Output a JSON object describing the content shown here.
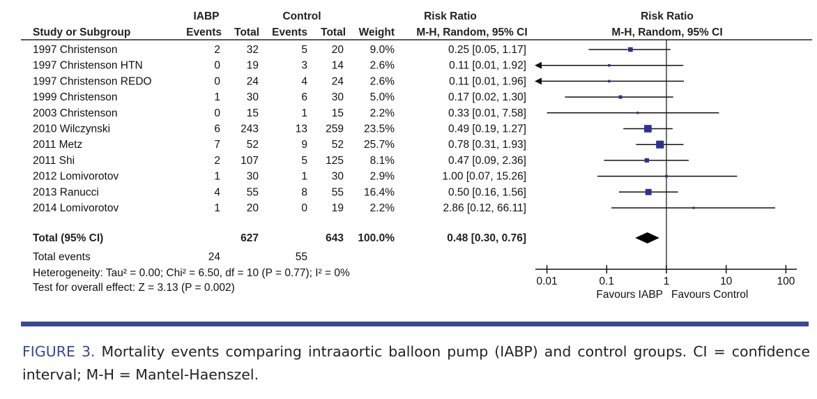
{
  "headers": {
    "group1": "IABP",
    "group2": "Control",
    "effect_top": "Risk Ratio",
    "study": "Study or Subgroup",
    "events": "Events",
    "total": "Total",
    "weight": "Weight",
    "effect_sub": "M-H, Random, 95% CI",
    "plot_top": "Risk Ratio",
    "plot_sub": "M-H, Random, 95% CI"
  },
  "chart_data": {
    "type": "forest",
    "x_scale": "log",
    "xlim": [
      0.01,
      100
    ],
    "x_ticks": [
      "0.01",
      "0.1",
      "1",
      "10",
      "100"
    ],
    "null_line": 1,
    "favours_left": "Favours IABP",
    "favours_right": "Favours Control",
    "marker_color": "#2e3192",
    "studies": [
      {
        "name": "1997 Christenson",
        "e1": "2",
        "n1": "32",
        "e2": "5",
        "n2": "20",
        "weight": "9.0%",
        "ci_text": "0.25 [0.05, 1.17]",
        "rr": 0.25,
        "lo": 0.05,
        "hi": 1.17,
        "w": 9.0
      },
      {
        "name": "1997 Christenson HTN",
        "e1": "0",
        "n1": "19",
        "e2": "3",
        "n2": "14",
        "weight": "2.6%",
        "ci_text": "0.11 [0.01, 1.92]",
        "rr": 0.11,
        "lo": 0.01,
        "hi": 1.92,
        "w": 2.6,
        "arrow_left": true
      },
      {
        "name": "1997 Christenson REDO",
        "e1": "0",
        "n1": "24",
        "e2": "4",
        "n2": "24",
        "weight": "2.6%",
        "ci_text": "0.11 [0.01, 1.96]",
        "rr": 0.11,
        "lo": 0.01,
        "hi": 1.96,
        "w": 2.6,
        "arrow_left": true
      },
      {
        "name": "1999 Christenson",
        "e1": "1",
        "n1": "30",
        "e2": "6",
        "n2": "30",
        "weight": "5.0%",
        "ci_text": "0.17 [0.02, 1.30]",
        "rr": 0.17,
        "lo": 0.02,
        "hi": 1.3,
        "w": 5.0
      },
      {
        "name": "2003 Christenson",
        "e1": "0",
        "n1": "15",
        "e2": "1",
        "n2": "15",
        "weight": "2.2%",
        "ci_text": "0.33 [0.01, 7.58]",
        "rr": 0.33,
        "lo": 0.01,
        "hi": 7.58,
        "w": 2.2
      },
      {
        "name": "2010 Wilczynski",
        "e1": "6",
        "n1": "243",
        "e2": "13",
        "n2": "259",
        "weight": "23.5%",
        "ci_text": "0.49 [0.19, 1.27]",
        "rr": 0.49,
        "lo": 0.19,
        "hi": 1.27,
        "w": 23.5
      },
      {
        "name": "2011 Metz",
        "e1": "7",
        "n1": "52",
        "e2": "9",
        "n2": "52",
        "weight": "25.7%",
        "ci_text": "0.78 [0.31, 1.93]",
        "rr": 0.78,
        "lo": 0.31,
        "hi": 1.93,
        "w": 25.7
      },
      {
        "name": "2011 Shi",
        "e1": "2",
        "n1": "107",
        "e2": "5",
        "n2": "125",
        "weight": "8.1%",
        "ci_text": "0.47 [0.09, 2.36]",
        "rr": 0.47,
        "lo": 0.09,
        "hi": 2.36,
        "w": 8.1
      },
      {
        "name": "2012 Lomivorotov",
        "e1": "1",
        "n1": "30",
        "e2": "1",
        "n2": "30",
        "weight": "2.9%",
        "ci_text": "1.00 [0.07, 15.26]",
        "rr": 1.0,
        "lo": 0.07,
        "hi": 15.26,
        "w": 2.9
      },
      {
        "name": "2013 Ranucci",
        "e1": "4",
        "n1": "55",
        "e2": "8",
        "n2": "55",
        "weight": "16.4%",
        "ci_text": "0.50 [0.16, 1.56]",
        "rr": 0.5,
        "lo": 0.16,
        "hi": 1.56,
        "w": 16.4
      },
      {
        "name": "2014 Lomivorotov",
        "e1": "1",
        "n1": "20",
        "e2": "0",
        "n2": "19",
        "weight": "2.2%",
        "ci_text": "2.86 [0.12, 66.11]",
        "rr": 2.86,
        "lo": 0.12,
        "hi": 66.11,
        "w": 2.2
      }
    ],
    "total": {
      "name": "Total (95% CI)",
      "n1": "627",
      "n2": "643",
      "weight": "100.0%",
      "ci_text": "0.48 [0.30, 0.76]",
      "rr": 0.48,
      "lo": 0.3,
      "hi": 0.76
    },
    "total_events": {
      "label": "Total events",
      "e1": "24",
      "e2": "55"
    },
    "heterogeneity": "Heterogeneity: Tau² = 0.00; Chi² = 6.50, df = 10 (P = 0.77); I² = 0%",
    "overall_effect": "Test for overall effect: Z = 3.13 (P = 0.002)"
  },
  "caption": {
    "label": "FIGURE 3.",
    "text": " Mortality events comparing intraaortic balloon pump (IABP) and control groups. CI = confidence interval; M-H = Mantel-Haenszel."
  }
}
